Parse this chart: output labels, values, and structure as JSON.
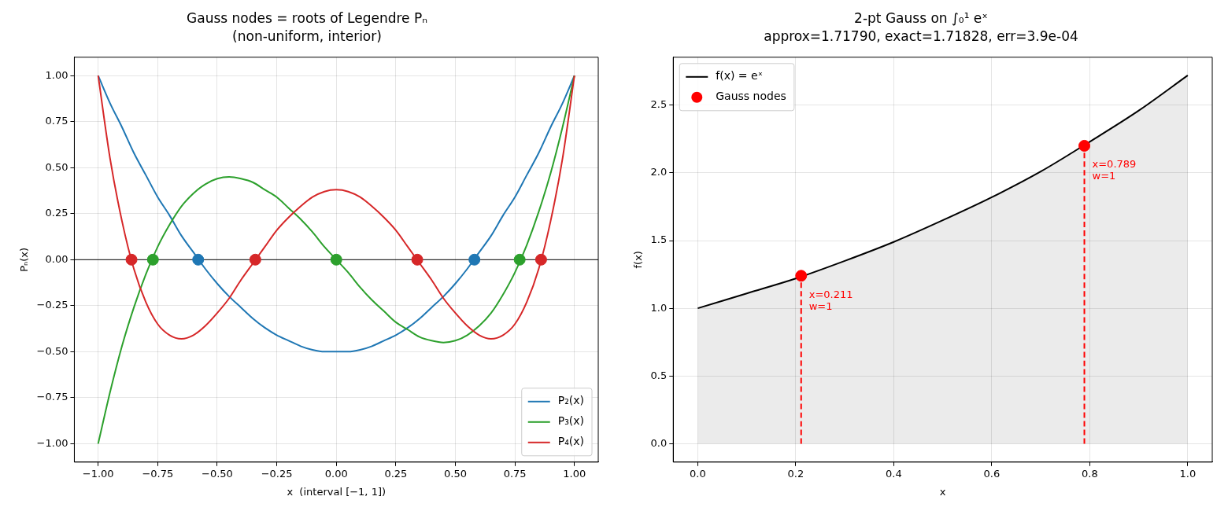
{
  "chart_data": [
    {
      "type": "line",
      "title": "Gauss nodes = roots of Legendre Pₙ\n(non-uniform, interior)",
      "xlabel": "x  (interval [−1, 1])",
      "ylabel": "Pₙ(x)",
      "x": [
        -1,
        -0.95,
        -0.9,
        -0.85,
        -0.8,
        -0.75,
        -0.7,
        -0.65,
        -0.6,
        -0.55,
        -0.5,
        -0.45,
        -0.4,
        -0.35,
        -0.3,
        -0.25,
        -0.2,
        -0.15,
        -0.1,
        -0.05,
        0,
        0.05,
        0.1,
        0.15,
        0.2,
        0.25,
        0.3,
        0.35,
        0.4,
        0.45,
        0.5,
        0.55,
        0.6,
        0.65,
        0.7,
        0.75,
        0.8,
        0.85,
        0.9,
        0.95,
        1
      ],
      "series": [
        {
          "name": "P₂(x)",
          "color": "#1f77b4",
          "values": [
            1,
            0.85,
            0.72,
            0.58,
            0.46,
            0.34,
            0.24,
            0.13,
            0.04,
            -0.05,
            -0.13,
            -0.2,
            -0.26,
            -0.32,
            -0.37,
            -0.41,
            -0.44,
            -0.47,
            -0.49,
            -0.5,
            -0.5,
            -0.5,
            -0.49,
            -0.47,
            -0.44,
            -0.41,
            -0.37,
            -0.32,
            -0.26,
            -0.2,
            -0.13,
            -0.05,
            0.04,
            0.13,
            0.24,
            0.34,
            0.46,
            0.58,
            0.72,
            0.85,
            1
          ]
        },
        {
          "name": "P₃(x)",
          "color": "#2ca02c",
          "values": [
            -1,
            -0.72,
            -0.47,
            -0.26,
            -0.08,
            0.07,
            0.19,
            0.29,
            0.36,
            0.41,
            0.44,
            0.45,
            0.44,
            0.42,
            0.38,
            0.34,
            0.28,
            0.22,
            0.15,
            0.07,
            0,
            -0.07,
            -0.15,
            -0.22,
            -0.28,
            -0.34,
            -0.38,
            -0.42,
            -0.44,
            -0.45,
            -0.44,
            -0.41,
            -0.36,
            -0.29,
            -0.19,
            -0.07,
            0.08,
            0.26,
            0.47,
            0.72,
            1
          ]
        },
        {
          "name": "P₄(x)",
          "color": "#d62728",
          "values": [
            1,
            0.55,
            0.21,
            -0.05,
            -0.23,
            -0.35,
            -0.41,
            -0.43,
            -0.41,
            -0.36,
            -0.29,
            -0.21,
            -0.11,
            -0.02,
            0.07,
            0.16,
            0.23,
            0.29,
            0.34,
            0.37,
            0.38,
            0.37,
            0.34,
            0.29,
            0.23,
            0.16,
            0.07,
            -0.02,
            -0.11,
            -0.21,
            -0.29,
            -0.36,
            -0.41,
            -0.43,
            -0.41,
            -0.35,
            -0.23,
            -0.05,
            0.21,
            0.55,
            1
          ]
        },
        {
          "type": "scatter",
          "marker": "circle",
          "color": "#1f77b4",
          "x": [
            -0.58,
            0.58
          ],
          "values": [
            0,
            0
          ]
        },
        {
          "type": "scatter",
          "marker": "circle",
          "color": "#2ca02c",
          "x": [
            -0.77,
            0,
            0.77
          ],
          "values": [
            0,
            0,
            0
          ]
        },
        {
          "type": "scatter",
          "marker": "circle",
          "color": "#d62728",
          "x": [
            -0.86,
            -0.34,
            0.34,
            0.86
          ],
          "values": [
            0,
            0,
            0,
            0
          ]
        }
      ],
      "xlim": [
        -1.1,
        1.1
      ],
      "ylim": [
        -1.1,
        1.1
      ],
      "xticks": [
        {
          "value": -1,
          "label": "−1.00"
        },
        {
          "value": -0.75,
          "label": "−0.75"
        },
        {
          "value": -0.5,
          "label": "−0.50"
        },
        {
          "value": -0.25,
          "label": "−0.25"
        },
        {
          "value": 0,
          "label": "0.00"
        },
        {
          "value": 0.25,
          "label": "0.25"
        },
        {
          "value": 0.5,
          "label": "0.50"
        },
        {
          "value": 0.75,
          "label": "0.75"
        },
        {
          "value": 1,
          "label": "1.00"
        }
      ],
      "yticks": [
        {
          "value": -1,
          "label": "−1.00"
        },
        {
          "value": -0.75,
          "label": "−0.75"
        },
        {
          "value": -0.5,
          "label": "−0.50"
        },
        {
          "value": -0.25,
          "label": "−0.25"
        },
        {
          "value": 0,
          "label": "0.00"
        },
        {
          "value": 0.25,
          "label": "0.25"
        },
        {
          "value": 0.5,
          "label": "0.50"
        },
        {
          "value": 0.75,
          "label": "0.75"
        },
        {
          "value": 1,
          "label": "1.00"
        }
      ],
      "ref_lines": [
        {
          "axis": "y",
          "value": 0,
          "color": "#000000"
        }
      ],
      "grid": true,
      "legend": "bottom right"
    },
    {
      "type": "line",
      "title": "2-pt Gauss on ∫₀¹ eˣ\napprox=1.71790, exact=1.71828, err=3.9e-04",
      "xlabel": "x",
      "ylabel": "f(x)",
      "x": [
        0,
        0.1,
        0.2,
        0.3,
        0.4,
        0.5,
        0.6,
        0.7,
        0.8,
        0.9,
        1
      ],
      "series": [
        {
          "type": "area",
          "name": "f(x) = eˣ",
          "color": "#000000",
          "values": [
            1,
            1.11,
            1.22,
            1.35,
            1.49,
            1.65,
            1.82,
            2.01,
            2.23,
            2.46,
            2.72
          ]
        },
        {
          "color": "#ff0000",
          "line_style": "dashed",
          "x": [
            0.211,
            0.211
          ],
          "values": [
            0,
            1.24
          ]
        },
        {
          "color": "#ff0000",
          "line_style": "dashed",
          "x": [
            0.789,
            0.789
          ],
          "values": [
            0,
            2.2
          ]
        },
        {
          "type": "scatter",
          "marker": "circle",
          "name": "Gauss nodes",
          "color": "#ff0000",
          "x": [
            0.211,
            0.789
          ],
          "values": [
            1.24,
            2.2
          ]
        }
      ],
      "annotations": [
        {
          "text": "x=0.211\nw=1",
          "x": 0.211,
          "y": 1.24
        },
        {
          "text": "x=0.789\nw=1",
          "x": 0.789,
          "y": 2.2
        }
      ],
      "xlim": [
        -0.05,
        1.05
      ],
      "ylim": [
        -0.136,
        2.854
      ],
      "xticks": [
        {
          "value": 0,
          "label": "0.0"
        },
        {
          "value": 0.2,
          "label": "0.2"
        },
        {
          "value": 0.4,
          "label": "0.4"
        },
        {
          "value": 0.6,
          "label": "0.6"
        },
        {
          "value": 0.8,
          "label": "0.8"
        },
        {
          "value": 1,
          "label": "1.0"
        }
      ],
      "yticks": [
        {
          "value": 0,
          "label": "0.0"
        },
        {
          "value": 0.5,
          "label": "0.5"
        },
        {
          "value": 1,
          "label": "1.0"
        },
        {
          "value": 1.5,
          "label": "1.5"
        },
        {
          "value": 2,
          "label": "2.0"
        },
        {
          "value": 2.5,
          "label": "2.5"
        }
      ],
      "grid": true,
      "legend": "top left"
    }
  ]
}
